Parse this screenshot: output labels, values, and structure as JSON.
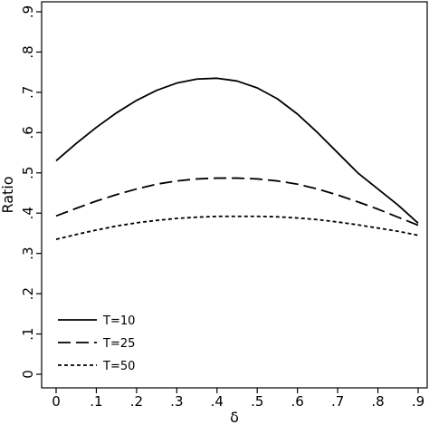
{
  "chart_data": {
    "type": "line",
    "xlabel": "δ",
    "ylabel": "Ratio",
    "xlim": [
      0,
      0.9
    ],
    "ylim": [
      0,
      0.9
    ],
    "grid": false,
    "legend_position": "bottom-left",
    "x_ticks": [
      {
        "value": 0,
        "label": "0"
      },
      {
        "value": 0.1,
        "label": ".1"
      },
      {
        "value": 0.2,
        "label": ".2"
      },
      {
        "value": 0.3,
        "label": ".3"
      },
      {
        "value": 0.4,
        "label": ".4"
      },
      {
        "value": 0.5,
        "label": ".5"
      },
      {
        "value": 0.6,
        "label": ".6"
      },
      {
        "value": 0.7,
        "label": ".7"
      },
      {
        "value": 0.8,
        "label": ".8"
      },
      {
        "value": 0.9,
        "label": ".9"
      }
    ],
    "y_ticks": [
      {
        "value": 0,
        "label": "0"
      },
      {
        "value": 0.1,
        "label": ".1"
      },
      {
        "value": 0.2,
        "label": ".2"
      },
      {
        "value": 0.3,
        "label": ".3"
      },
      {
        "value": 0.4,
        "label": ".4"
      },
      {
        "value": 0.5,
        "label": ".5"
      },
      {
        "value": 0.6,
        "label": ".6"
      },
      {
        "value": 0.7,
        "label": ".7"
      },
      {
        "value": 0.8,
        "label": ".8"
      },
      {
        "value": 0.9,
        "label": ".9"
      }
    ],
    "x": [
      0,
      0.05,
      0.1,
      0.15,
      0.2,
      0.25,
      0.3,
      0.35,
      0.4,
      0.45,
      0.5,
      0.55,
      0.6,
      0.65,
      0.7,
      0.75,
      0.8,
      0.85,
      0.9
    ],
    "series": [
      {
        "name": "T=10",
        "style": "solid",
        "values": [
          0.53,
          0.573,
          0.613,
          0.649,
          0.68,
          0.705,
          0.723,
          0.733,
          0.735,
          0.728,
          0.711,
          0.684,
          0.646,
          0.6,
          0.55,
          0.5,
          0.46,
          0.42,
          0.375
        ]
      },
      {
        "name": "T=25",
        "style": "dashed",
        "values": [
          0.393,
          0.412,
          0.43,
          0.446,
          0.46,
          0.472,
          0.48,
          0.485,
          0.487,
          0.487,
          0.485,
          0.48,
          0.472,
          0.46,
          0.445,
          0.428,
          0.41,
          0.39,
          0.37
        ]
      },
      {
        "name": "T=50",
        "style": "dotted",
        "values": [
          0.335,
          0.347,
          0.358,
          0.368,
          0.376,
          0.382,
          0.387,
          0.39,
          0.392,
          0.392,
          0.392,
          0.391,
          0.388,
          0.384,
          0.378,
          0.371,
          0.363,
          0.355,
          0.345
        ]
      }
    ]
  }
}
